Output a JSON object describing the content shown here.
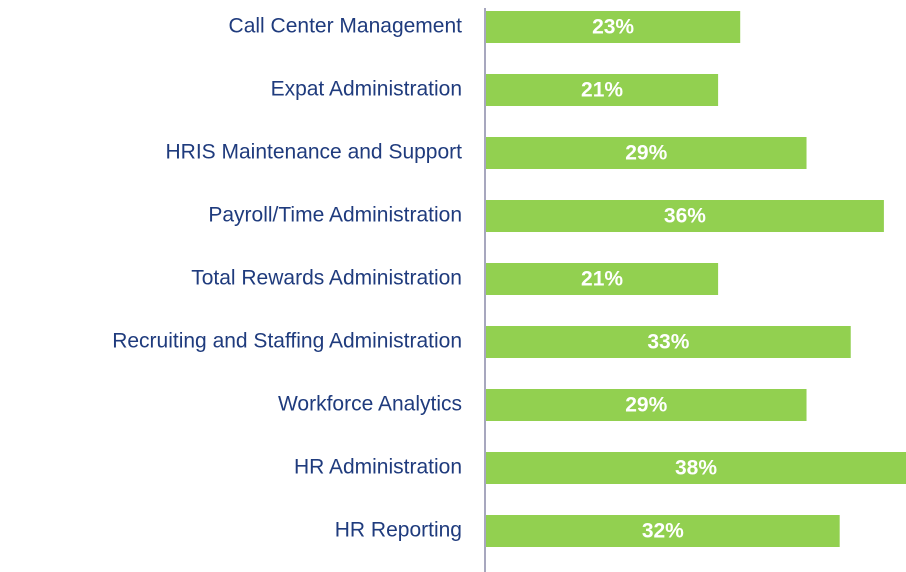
{
  "chart_data": {
    "type": "bar",
    "orientation": "horizontal",
    "categories": [
      "Call Center Management",
      "Expat Administration",
      "HRIS Maintenance and Support",
      "Payroll/Time Administration",
      "Total Rewards Administration",
      "Recruiting and Staffing Administration",
      "Workforce Analytics",
      "HR Administration",
      "HR Reporting"
    ],
    "values": [
      23,
      21,
      29,
      36,
      21,
      33,
      29,
      38,
      32
    ],
    "value_labels": [
      "23%",
      "21%",
      "29%",
      "36%",
      "21%",
      "33%",
      "29%",
      "38%",
      "32%"
    ],
    "color": "#92d050",
    "xlim": [
      0,
      38
    ]
  }
}
